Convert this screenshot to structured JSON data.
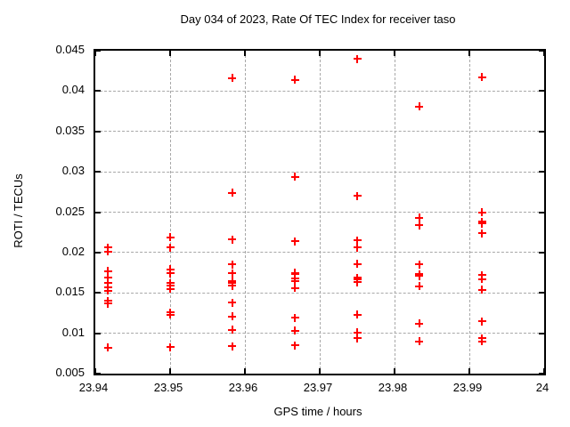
{
  "chart_data": {
    "type": "scatter",
    "title": "Day 034 of 2023, Rate Of TEC Index for receiver taso",
    "xlabel": "GPS time / hours",
    "ylabel": "ROTI / TECUs",
    "xlim": [
      23.94,
      24
    ],
    "ylim": [
      0.005,
      0.045
    ],
    "xticks": [
      23.94,
      23.95,
      23.96,
      23.97,
      23.98,
      23.99,
      24
    ],
    "xtick_labels": [
      "23.94",
      "23.95",
      "23.96",
      "23.97",
      "23.98",
      "23.99",
      "24"
    ],
    "yticks": [
      0.005,
      0.01,
      0.015,
      0.02,
      0.025,
      0.03,
      0.035,
      0.04,
      0.045
    ],
    "ytick_labels": [
      "0.005",
      "0.01",
      "0.015",
      "0.02",
      "0.025",
      "0.03",
      "0.035",
      "0.04",
      "0.045"
    ],
    "grid": true,
    "legend": false,
    "marker": {
      "shape": "plus",
      "color": "#ff0000",
      "size": 9
    },
    "series": [
      {
        "name": "ROTI",
        "points": [
          [
            23.9417,
            0.0206
          ],
          [
            23.9417,
            0.0201
          ],
          [
            23.9417,
            0.0177
          ],
          [
            23.9417,
            0.0169
          ],
          [
            23.9417,
            0.0162
          ],
          [
            23.9417,
            0.0157
          ],
          [
            23.9417,
            0.0153
          ],
          [
            23.9417,
            0.014
          ],
          [
            23.9417,
            0.0137
          ],
          [
            23.9417,
            0.0082
          ],
          [
            23.95,
            0.0219
          ],
          [
            23.95,
            0.0206
          ],
          [
            23.95,
            0.0179
          ],
          [
            23.95,
            0.0174
          ],
          [
            23.95,
            0.0162
          ],
          [
            23.95,
            0.0159
          ],
          [
            23.95,
            0.0155
          ],
          [
            23.95,
            0.0126
          ],
          [
            23.95,
            0.0123
          ],
          [
            23.95,
            0.0083
          ],
          [
            23.9583,
            0.0416
          ],
          [
            23.9583,
            0.0274
          ],
          [
            23.9583,
            0.0216
          ],
          [
            23.9583,
            0.0185
          ],
          [
            23.9583,
            0.0174
          ],
          [
            23.9583,
            0.0165
          ],
          [
            23.9583,
            0.0162
          ],
          [
            23.9583,
            0.0159
          ],
          [
            23.9583,
            0.0138
          ],
          [
            23.9583,
            0.0121
          ],
          [
            23.9583,
            0.0104
          ],
          [
            23.9583,
            0.0084
          ],
          [
            23.9667,
            0.0414
          ],
          [
            23.9667,
            0.0294
          ],
          [
            23.9667,
            0.0214
          ],
          [
            23.9667,
            0.0175
          ],
          [
            23.9667,
            0.0173
          ],
          [
            23.9667,
            0.0168
          ],
          [
            23.9667,
            0.0165
          ],
          [
            23.9667,
            0.0156
          ],
          [
            23.9667,
            0.0119
          ],
          [
            23.9667,
            0.0103
          ],
          [
            23.9667,
            0.0085
          ],
          [
            23.975,
            0.044
          ],
          [
            23.975,
            0.027
          ],
          [
            23.975,
            0.0215
          ],
          [
            23.975,
            0.0206
          ],
          [
            23.975,
            0.0186
          ],
          [
            23.975,
            0.0169
          ],
          [
            23.975,
            0.0167
          ],
          [
            23.975,
            0.0163
          ],
          [
            23.975,
            0.0123
          ],
          [
            23.975,
            0.0101
          ],
          [
            23.975,
            0.0094
          ],
          [
            23.9833,
            0.0381
          ],
          [
            23.9833,
            0.0243
          ],
          [
            23.9833,
            0.0234
          ],
          [
            23.9833,
            0.0185
          ],
          [
            23.9833,
            0.0173
          ],
          [
            23.9833,
            0.0171
          ],
          [
            23.9833,
            0.0158
          ],
          [
            23.9833,
            0.0112
          ],
          [
            23.9833,
            0.009
          ],
          [
            23.9917,
            0.0417
          ],
          [
            23.9917,
            0.025
          ],
          [
            23.9917,
            0.0238
          ],
          [
            23.9917,
            0.0236
          ],
          [
            23.9917,
            0.0224
          ],
          [
            23.9917,
            0.0172
          ],
          [
            23.9917,
            0.0167
          ],
          [
            23.9917,
            0.0154
          ],
          [
            23.9917,
            0.0115
          ],
          [
            23.9917,
            0.0094
          ],
          [
            23.9917,
            0.009
          ]
        ]
      }
    ],
    "colors": {
      "marker": "#ff0000",
      "grid": "#a8a8a8",
      "frame": "#000000",
      "background": "#ffffff"
    }
  }
}
